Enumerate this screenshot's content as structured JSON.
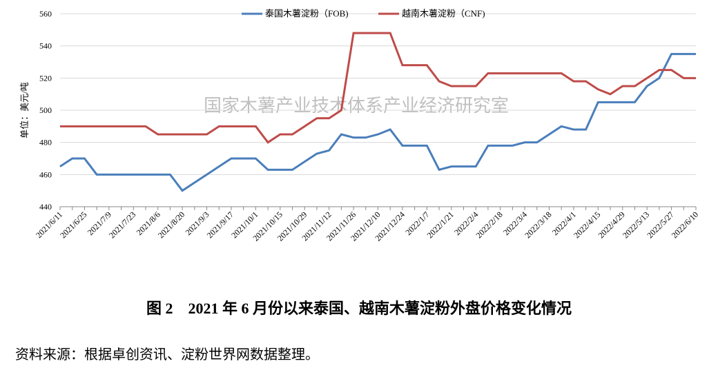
{
  "chart_data": {
    "type": "line",
    "watermark": "国家木薯产业技术体系产业经济研究室",
    "y_label": "单位：美元/吨",
    "caption": "图 2　2021 年 6 月份以来泰国、越南木薯淀粉外盘价格变化情况",
    "source": "资料来源：根据卓创资讯、淀粉世界网数据整理。",
    "categories": [
      "2021/6/11",
      null,
      "2021/6/25",
      null,
      "2021/7/9",
      null,
      "2021/7/23",
      null,
      "2021/8/6",
      null,
      "2021/8/20",
      null,
      "2021/9/3",
      null,
      "2021/9/17",
      null,
      "2021/10/1",
      null,
      "2021/10/15",
      null,
      "2021/10/29",
      null,
      "2021/11/12",
      null,
      "2021/11/26",
      null,
      "2021/12/10",
      null,
      "2021/12/24",
      null,
      "2022/1/7",
      null,
      "2022/1/21",
      null,
      "2022/2/4",
      null,
      "2022/2/18",
      null,
      "2022/3/4",
      null,
      "2022/3/18",
      null,
      "2022/4/1",
      null,
      "2022/4/15",
      null,
      "2022/4/29",
      null,
      "2022/5/13",
      null,
      "2022/5/27",
      null,
      "2022/6/10"
    ],
    "series": [
      {
        "name": "泰国木薯淀粉（FOB)",
        "color": "#4a7ebb",
        "values": [
          465,
          470,
          470,
          460,
          460,
          460,
          460,
          460,
          460,
          460,
          450,
          455,
          460,
          465,
          470,
          470,
          470,
          463,
          463,
          463,
          468,
          473,
          475,
          485,
          483,
          483,
          485,
          488,
          478,
          478,
          478,
          463,
          465,
          465,
          465,
          478,
          478,
          478,
          480,
          480,
          485,
          490,
          488,
          488,
          505,
          505,
          505,
          505,
          515,
          520,
          535,
          535,
          535
        ]
      },
      {
        "name": "越南木薯淀粉（CNF)",
        "color": "#be4b48",
        "values": [
          490,
          490,
          490,
          490,
          490,
          490,
          490,
          490,
          485,
          485,
          485,
          485,
          485,
          490,
          490,
          490,
          490,
          480,
          485,
          485,
          490,
          495,
          495,
          500,
          548,
          548,
          548,
          548,
          528,
          528,
          528,
          518,
          515,
          515,
          515,
          523,
          523,
          523,
          523,
          523,
          523,
          523,
          518,
          518,
          513,
          510,
          515,
          515,
          520,
          525,
          525,
          520,
          520
        ]
      }
    ],
    "ylim": [
      440,
      560
    ],
    "yticks": [
      440,
      460,
      480,
      500,
      520,
      540,
      560
    ],
    "grid": true
  }
}
